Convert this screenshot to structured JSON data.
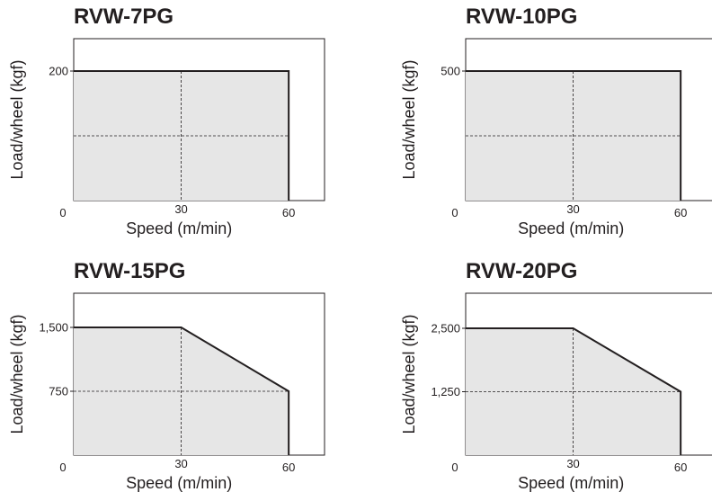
{
  "chart_data": [
    {
      "type": "area",
      "title": "RVW-7PG",
      "xlabel": "Speed (m/min)",
      "ylabel": "Load/wheel (kgf)",
      "x_ticks": [
        "0",
        "30",
        "60"
      ],
      "y_ticks": [
        "200"
      ],
      "xlim": [
        0,
        70
      ],
      "ylim": [
        0,
        200
      ],
      "grid_x": [
        30
      ],
      "grid_y": [
        100
      ],
      "series": [
        {
          "x": [
            0,
            60,
            60
          ],
          "y": [
            200,
            200,
            0
          ]
        }
      ],
      "fill_color": "#e6e6e6"
    },
    {
      "type": "area",
      "title": "RVW-10PG",
      "xlabel": "Speed (m/min)",
      "ylabel": "Load/wheel (kgf)",
      "x_ticks": [
        "0",
        "30",
        "60"
      ],
      "y_ticks": [
        "500"
      ],
      "xlim": [
        0,
        70
      ],
      "ylim": [
        0,
        500
      ],
      "grid_x": [
        30
      ],
      "grid_y": [
        250
      ],
      "series": [
        {
          "x": [
            0,
            60,
            60
          ],
          "y": [
            500,
            500,
            0
          ]
        }
      ],
      "fill_color": "#e6e6e6"
    },
    {
      "type": "area",
      "title": "RVW-15PG",
      "xlabel": "Speed (m/min)",
      "ylabel": "Load/wheel (kgf)",
      "x_ticks": [
        "0",
        "30",
        "60"
      ],
      "y_ticks": [
        "1,500",
        "750"
      ],
      "xlim": [
        0,
        70
      ],
      "ylim": [
        0,
        1500
      ],
      "grid_x": [
        30
      ],
      "grid_y": [
        750
      ],
      "series": [
        {
          "x": [
            0,
            30,
            60,
            60
          ],
          "y": [
            1500,
            1500,
            750,
            0
          ]
        }
      ],
      "fill_color": "#e6e6e6"
    },
    {
      "type": "area",
      "title": "RVW-20PG",
      "xlabel": "Speed (m/min)",
      "ylabel": "Load/wheel (kgf)",
      "x_ticks": [
        "0",
        "30",
        "60"
      ],
      "y_ticks": [
        "2,500",
        "1,250"
      ],
      "xlim": [
        0,
        70
      ],
      "ylim": [
        0,
        2500
      ],
      "grid_x": [
        30
      ],
      "grid_y": [
        1250
      ],
      "series": [
        {
          "x": [
            0,
            30,
            60,
            60
          ],
          "y": [
            2500,
            2500,
            1250,
            0
          ]
        }
      ],
      "fill_color": "#e6e6e6"
    }
  ]
}
